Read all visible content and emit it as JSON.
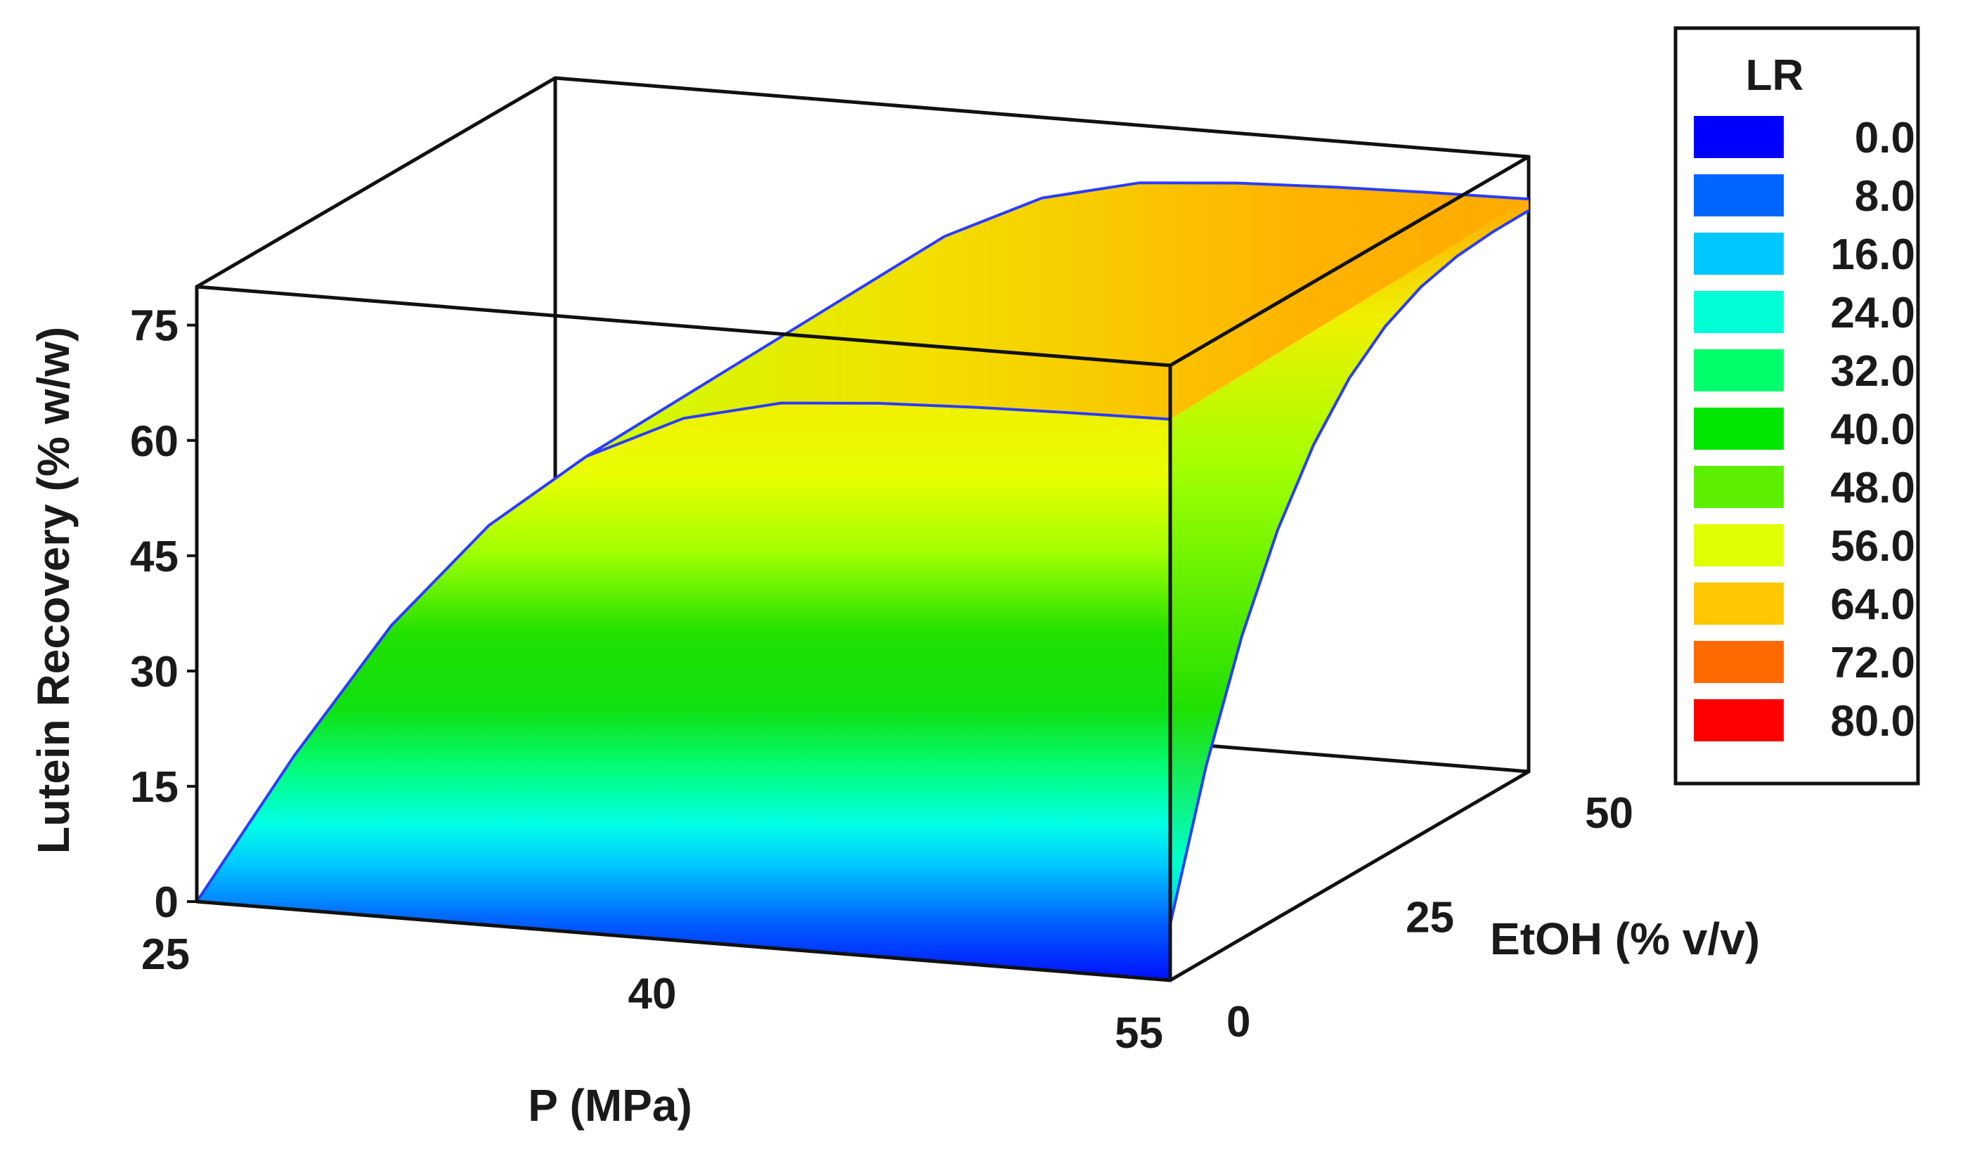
{
  "chart_data": {
    "type": "surface",
    "title": "",
    "xlabel": "P (MPa)",
    "ylabel": "EtOH (% v/v)",
    "zlabel": "Lutein Recovery (% w/w)",
    "x_ticks": [
      "25",
      "40",
      "55"
    ],
    "y_ticks": [
      "0",
      "25",
      "50"
    ],
    "z_ticks": [
      "0",
      "15",
      "30",
      "45",
      "60",
      "75"
    ],
    "xlim": [
      25,
      55
    ],
    "ylim": [
      0,
      50
    ],
    "zlim": [
      0,
      80
    ],
    "surface_profile": {
      "description_axis": "P (MPa)",
      "p": [
        25,
        28,
        31,
        34,
        37,
        40,
        43,
        46,
        49,
        52,
        55
      ],
      "lr": [
        0,
        20,
        38,
        52,
        62,
        68,
        71,
        72,
        72.5,
        72.8,
        73
      ]
    },
    "legend": {
      "title": "LR",
      "placement": "right",
      "items": [
        {
          "label": "0.0",
          "color": "#0000ff"
        },
        {
          "label": "8.0",
          "color": "#0066ff"
        },
        {
          "label": "16.0",
          "color": "#00c8ff"
        },
        {
          "label": "24.0",
          "color": "#00ffd6"
        },
        {
          "label": "32.0",
          "color": "#00ff6a"
        },
        {
          "label": "40.0",
          "color": "#00e600"
        },
        {
          "label": "48.0",
          "color": "#5cf000"
        },
        {
          "label": "56.0",
          "color": "#e0ff00"
        },
        {
          "label": "64.0",
          "color": "#ffc800"
        },
        {
          "label": "72.0",
          "color": "#ff6a00"
        },
        {
          "label": "80.0",
          "color": "#ff0000"
        }
      ]
    }
  }
}
